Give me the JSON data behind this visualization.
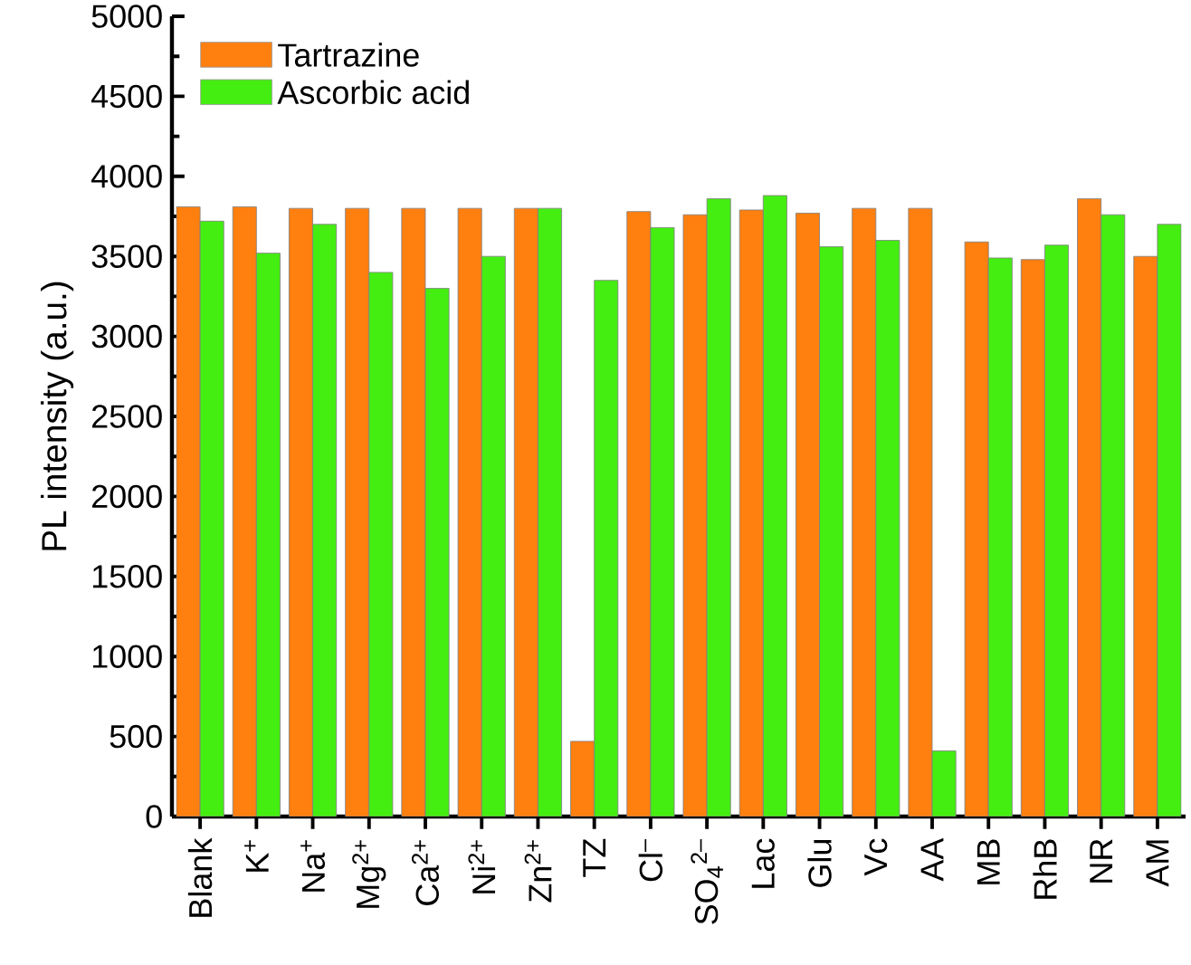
{
  "chart_data": {
    "type": "bar",
    "ylabel": "PL intensity (a.u.)",
    "categories": [
      "Blank",
      "K$^{+}$",
      "Na$^{+}$",
      "Mg$^{2+}$",
      "Ca$^{2+}$",
      "Ni$^{2+}$",
      "Zn$^{2+}$",
      "TZ",
      "Cl$^{–}$",
      "SO$_{4}$$^{2–}$",
      "Lac",
      "Glu",
      "Vc",
      "AA",
      "MB",
      "RhB",
      "NR",
      "AM"
    ],
    "series": [
      {
        "name": "Tartrazine",
        "color": "#ff7f0f",
        "values": [
          3810,
          3810,
          3800,
          3800,
          3800,
          3800,
          3800,
          470,
          3780,
          3760,
          3790,
          3770,
          3800,
          3800,
          3590,
          3480,
          3860,
          3500
        ]
      },
      {
        "name": "Ascorbic acid",
        "color": "#44ee11",
        "values": [
          3720,
          3520,
          3700,
          3400,
          3300,
          3500,
          3800,
          3350,
          3680,
          3860,
          3880,
          3560,
          3600,
          410,
          3490,
          3570,
          3760,
          3700
        ]
      }
    ],
    "ylim": [
      0,
      5000
    ],
    "yticks": [
      0,
      500,
      1000,
      1500,
      2000,
      2500,
      3000,
      3500,
      4000,
      4500,
      5000
    ],
    "legend": "top left",
    "grid": false
  }
}
